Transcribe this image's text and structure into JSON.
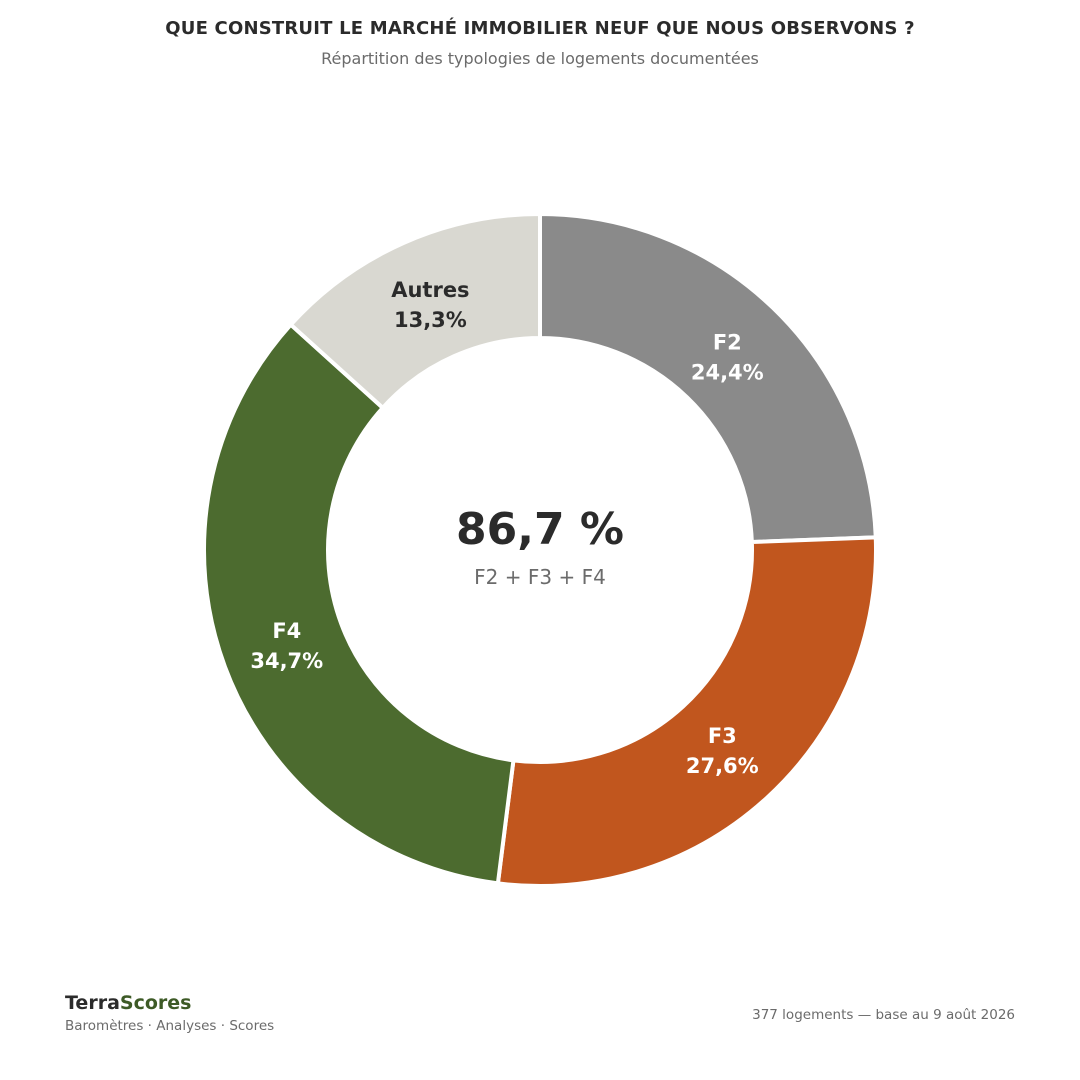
{
  "header": {
    "title": "QUE CONSTRUIT LE MARCHÉ IMMOBILIER NEUF QUE NOUS OBSERVONS ?",
    "subtitle": "Répartition des typologies de logements documentées"
  },
  "chart_data": {
    "type": "pie",
    "title": "QUE CONSTRUIT LE MARCHÉ IMMOBILIER NEUF QUE NOUS OBSERVONS ?",
    "subtitle": "Répartition des typologies de logements documentées",
    "donut": true,
    "start": "top",
    "direction": "clockwise",
    "slices": [
      {
        "label": "F2",
        "value": 24.4,
        "value_label": "24,4%",
        "color": "#8a8a8a",
        "text_color": "#ffffff"
      },
      {
        "label": "F3",
        "value": 27.6,
        "value_label": "27,6%",
        "color": "#c1561e",
        "text_color": "#ffffff"
      },
      {
        "label": "F4",
        "value": 34.7,
        "value_label": "34,7%",
        "color": "#4c6b2f",
        "text_color": "#ffffff"
      },
      {
        "label": "Autres",
        "value": 13.3,
        "value_label": "13,3%",
        "color": "#d9d8d1",
        "text_color": "#2b2b2b"
      }
    ],
    "center": {
      "value": "86,7 %",
      "label": "F2 + F3 + F4"
    }
  },
  "footer": {
    "brand_part1": "Terra",
    "brand_part2": "Scores",
    "tagline": "Baromètres · Analyses · Scores",
    "note": "377 logements — base au 9 août 2026"
  },
  "colors": {
    "brand_green": "#3d5a26",
    "text_dark": "#2b2b2b",
    "text_muted": "#6b6b6b"
  }
}
